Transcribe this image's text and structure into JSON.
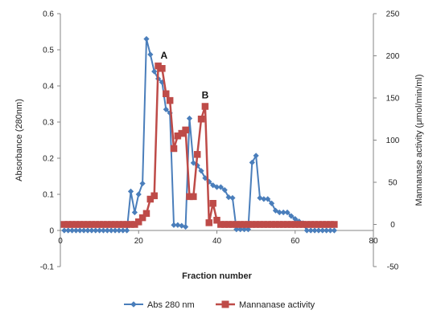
{
  "chart_data": {
    "type": "line",
    "xlabel": "Fraction number",
    "ylabel_left": "Absorbance (280nm)",
    "ylabel_right": "Mannanase activity (μmol/min/ml)",
    "xlim": [
      0,
      80
    ],
    "ylim_left": [
      -0.1,
      0.6
    ],
    "ylim_right": [
      -50,
      250
    ],
    "x_ticks": [
      "0",
      "20",
      "40",
      "60",
      "80"
    ],
    "y_left_ticks": [
      "-0.1",
      "0",
      "0.1",
      "0.2",
      "0.3",
      "0.4",
      "0.5",
      "0.6"
    ],
    "y_right_ticks": [
      "-50",
      "0",
      "50",
      "100",
      "150",
      "200",
      "250"
    ],
    "legend_position": "bottom",
    "annotations": [
      {
        "text": "A",
        "x": 26.5,
        "y_left": 0.485
      },
      {
        "text": "B",
        "x": 37.0,
        "y_left": 0.375
      }
    ],
    "series": [
      {
        "name": "Abs 280 nm",
        "axis": "left",
        "color": "#4a7ebb",
        "marker": "diamond",
        "x": [
          1,
          2,
          3,
          4,
          5,
          6,
          7,
          8,
          9,
          10,
          11,
          12,
          13,
          14,
          15,
          16,
          17,
          18,
          19,
          20,
          21,
          22,
          23,
          24,
          25,
          26,
          27,
          28,
          29,
          30,
          31,
          32,
          33,
          34,
          35,
          36,
          37,
          38,
          39,
          40,
          41,
          42,
          43,
          44,
          45,
          46,
          47,
          48,
          49,
          50,
          51,
          52,
          53,
          54,
          55,
          56,
          57,
          58,
          59,
          60,
          61,
          62,
          63,
          64,
          65,
          66,
          67,
          68,
          69,
          70
        ],
        "values": [
          0,
          0,
          0,
          0,
          0,
          0,
          0,
          0,
          0,
          0,
          0,
          0,
          0,
          0,
          0,
          0,
          0,
          0.108,
          0.05,
          0.1,
          0.13,
          0.53,
          0.487,
          0.44,
          0.42,
          0.41,
          0.335,
          0.325,
          0.015,
          0.015,
          0.013,
          0.01,
          0.31,
          0.187,
          0.18,
          0.165,
          0.145,
          0.135,
          0.125,
          0.12,
          0.12,
          0.112,
          0.092,
          0.09,
          0.003,
          0.003,
          0.003,
          0.003,
          0.188,
          0.207,
          0.09,
          0.087,
          0.087,
          0.075,
          0.055,
          0.05,
          0.05,
          0.05,
          0.04,
          0.032,
          0.025,
          0.02,
          0,
          0,
          0,
          0,
          0,
          0,
          0,
          0
        ]
      },
      {
        "name": "Mannanase activity",
        "axis": "right",
        "color": "#be4b48",
        "marker": "square",
        "x": [
          1,
          2,
          3,
          4,
          5,
          6,
          7,
          8,
          9,
          10,
          11,
          12,
          13,
          14,
          15,
          16,
          17,
          18,
          19,
          20,
          21,
          22,
          23,
          24,
          25,
          26,
          27,
          28,
          29,
          30,
          31,
          32,
          33,
          34,
          35,
          36,
          37,
          38,
          39,
          40,
          41,
          42,
          43,
          44,
          45,
          46,
          47,
          48,
          49,
          50,
          51,
          52,
          53,
          54,
          55,
          56,
          57,
          58,
          59,
          60,
          61,
          62,
          63,
          64,
          65,
          66,
          67,
          68,
          69,
          70
        ],
        "values": [
          0,
          0,
          0,
          0,
          0,
          0,
          0,
          0,
          0,
          0,
          0,
          0,
          0,
          0,
          0,
          0,
          0,
          0,
          0,
          3,
          8,
          13,
          30,
          34,
          188,
          185,
          155,
          147,
          90,
          105,
          108,
          112,
          33,
          33,
          83,
          125,
          140,
          2,
          25,
          5,
          0,
          0,
          0,
          0,
          0,
          0,
          0,
          0,
          0,
          0,
          0,
          0,
          0,
          0,
          0,
          0,
          0,
          0,
          0,
          0,
          0,
          0,
          0,
          0,
          0,
          0,
          0,
          0,
          0,
          0
        ]
      }
    ]
  }
}
